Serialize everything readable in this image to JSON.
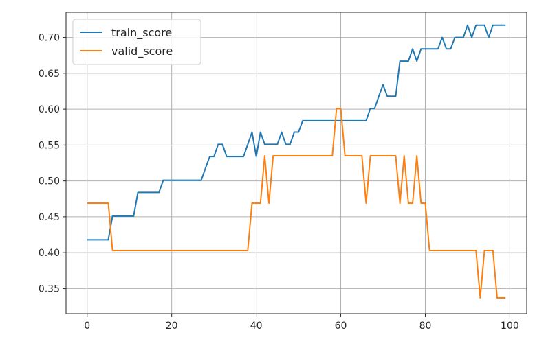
{
  "chart_data": {
    "type": "line",
    "title": "",
    "xlabel": "",
    "ylabel": "",
    "xlim": [
      -5,
      104
    ],
    "ylim": [
      0.315,
      0.735
    ],
    "grid": true,
    "legend_position": "top-left",
    "x_ticks": [
      {
        "value": 0,
        "label": "0"
      },
      {
        "value": 20,
        "label": "20"
      },
      {
        "value": 40,
        "label": "40"
      },
      {
        "value": 60,
        "label": "60"
      },
      {
        "value": 80,
        "label": "80"
      },
      {
        "value": 100,
        "label": "100"
      }
    ],
    "y_ticks": [
      {
        "value": 0.35,
        "label": "0.35"
      },
      {
        "value": 0.4,
        "label": "0.40"
      },
      {
        "value": 0.45,
        "label": "0.45"
      },
      {
        "value": 0.5,
        "label": "0.50"
      },
      {
        "value": 0.55,
        "label": "0.55"
      },
      {
        "value": 0.6,
        "label": "0.60"
      },
      {
        "value": 0.65,
        "label": "0.65"
      },
      {
        "value": 0.7,
        "label": "0.70"
      }
    ],
    "series": [
      {
        "name": "train_score",
        "color": "#1f77b4",
        "x": [
          0,
          1,
          2,
          3,
          4,
          5,
          6,
          7,
          8,
          9,
          10,
          11,
          12,
          13,
          14,
          15,
          16,
          17,
          18,
          19,
          20,
          21,
          22,
          23,
          24,
          25,
          26,
          27,
          28,
          29,
          30,
          31,
          32,
          33,
          34,
          35,
          36,
          37,
          38,
          39,
          40,
          41,
          42,
          43,
          44,
          45,
          46,
          47,
          48,
          49,
          50,
          51,
          52,
          53,
          54,
          55,
          56,
          57,
          58,
          59,
          60,
          61,
          62,
          63,
          64,
          65,
          66,
          67,
          68,
          69,
          70,
          71,
          72,
          73,
          74,
          75,
          76,
          77,
          78,
          79,
          80,
          81,
          82,
          83,
          84,
          85,
          86,
          87,
          88,
          89,
          90,
          91,
          92,
          93,
          94,
          95,
          96,
          97,
          98,
          99
        ],
        "y": [
          0.418,
          0.418,
          0.418,
          0.418,
          0.418,
          0.418,
          0.451,
          0.451,
          0.451,
          0.451,
          0.451,
          0.451,
          0.484,
          0.484,
          0.484,
          0.484,
          0.484,
          0.484,
          0.501,
          0.501,
          0.501,
          0.501,
          0.501,
          0.501,
          0.501,
          0.501,
          0.501,
          0.501,
          0.518,
          0.534,
          0.534,
          0.551,
          0.551,
          0.534,
          0.534,
          0.534,
          0.534,
          0.534,
          0.551,
          0.568,
          0.534,
          0.568,
          0.551,
          0.551,
          0.551,
          0.551,
          0.568,
          0.551,
          0.551,
          0.568,
          0.568,
          0.584,
          0.584,
          0.584,
          0.584,
          0.584,
          0.584,
          0.584,
          0.584,
          0.584,
          0.584,
          0.584,
          0.584,
          0.584,
          0.584,
          0.584,
          0.584,
          0.601,
          0.601,
          0.618,
          0.634,
          0.618,
          0.618,
          0.618,
          0.667,
          0.667,
          0.667,
          0.684,
          0.667,
          0.684,
          0.684,
          0.684,
          0.684,
          0.684,
          0.7,
          0.684,
          0.684,
          0.7,
          0.7,
          0.7,
          0.717,
          0.7,
          0.717,
          0.717,
          0.717,
          0.7,
          0.717,
          0.717,
          0.717,
          0.717
        ]
      },
      {
        "name": "valid_score",
        "color": "#ff7f0e",
        "x": [
          0,
          1,
          2,
          3,
          4,
          5,
          6,
          7,
          8,
          9,
          10,
          11,
          12,
          13,
          14,
          15,
          16,
          17,
          18,
          19,
          20,
          21,
          22,
          23,
          24,
          25,
          26,
          27,
          28,
          29,
          30,
          31,
          32,
          33,
          34,
          35,
          36,
          37,
          38,
          39,
          40,
          41,
          42,
          43,
          44,
          45,
          46,
          47,
          48,
          49,
          50,
          51,
          52,
          53,
          54,
          55,
          56,
          57,
          58,
          59,
          60,
          61,
          62,
          63,
          64,
          65,
          66,
          67,
          68,
          69,
          70,
          71,
          72,
          73,
          74,
          75,
          76,
          77,
          78,
          79,
          80,
          81,
          82,
          83,
          84,
          85,
          86,
          87,
          88,
          89,
          90,
          91,
          92,
          93,
          94,
          95,
          96,
          97,
          98,
          99
        ],
        "y": [
          0.469,
          0.469,
          0.469,
          0.469,
          0.469,
          0.469,
          0.403,
          0.403,
          0.403,
          0.403,
          0.403,
          0.403,
          0.403,
          0.403,
          0.403,
          0.403,
          0.403,
          0.403,
          0.403,
          0.403,
          0.403,
          0.403,
          0.403,
          0.403,
          0.403,
          0.403,
          0.403,
          0.403,
          0.403,
          0.403,
          0.403,
          0.403,
          0.403,
          0.403,
          0.403,
          0.403,
          0.403,
          0.403,
          0.403,
          0.469,
          0.469,
          0.469,
          0.535,
          0.469,
          0.535,
          0.535,
          0.535,
          0.535,
          0.535,
          0.535,
          0.535,
          0.535,
          0.535,
          0.535,
          0.535,
          0.535,
          0.535,
          0.535,
          0.535,
          0.601,
          0.601,
          0.535,
          0.535,
          0.535,
          0.535,
          0.535,
          0.469,
          0.535,
          0.535,
          0.535,
          0.535,
          0.535,
          0.535,
          0.535,
          0.469,
          0.535,
          0.469,
          0.469,
          0.535,
          0.469,
          0.469,
          0.403,
          0.403,
          0.403,
          0.403,
          0.403,
          0.403,
          0.403,
          0.403,
          0.403,
          0.403,
          0.403,
          0.403,
          0.337,
          0.403,
          0.403,
          0.403,
          0.337,
          0.337,
          0.337
        ]
      }
    ]
  }
}
